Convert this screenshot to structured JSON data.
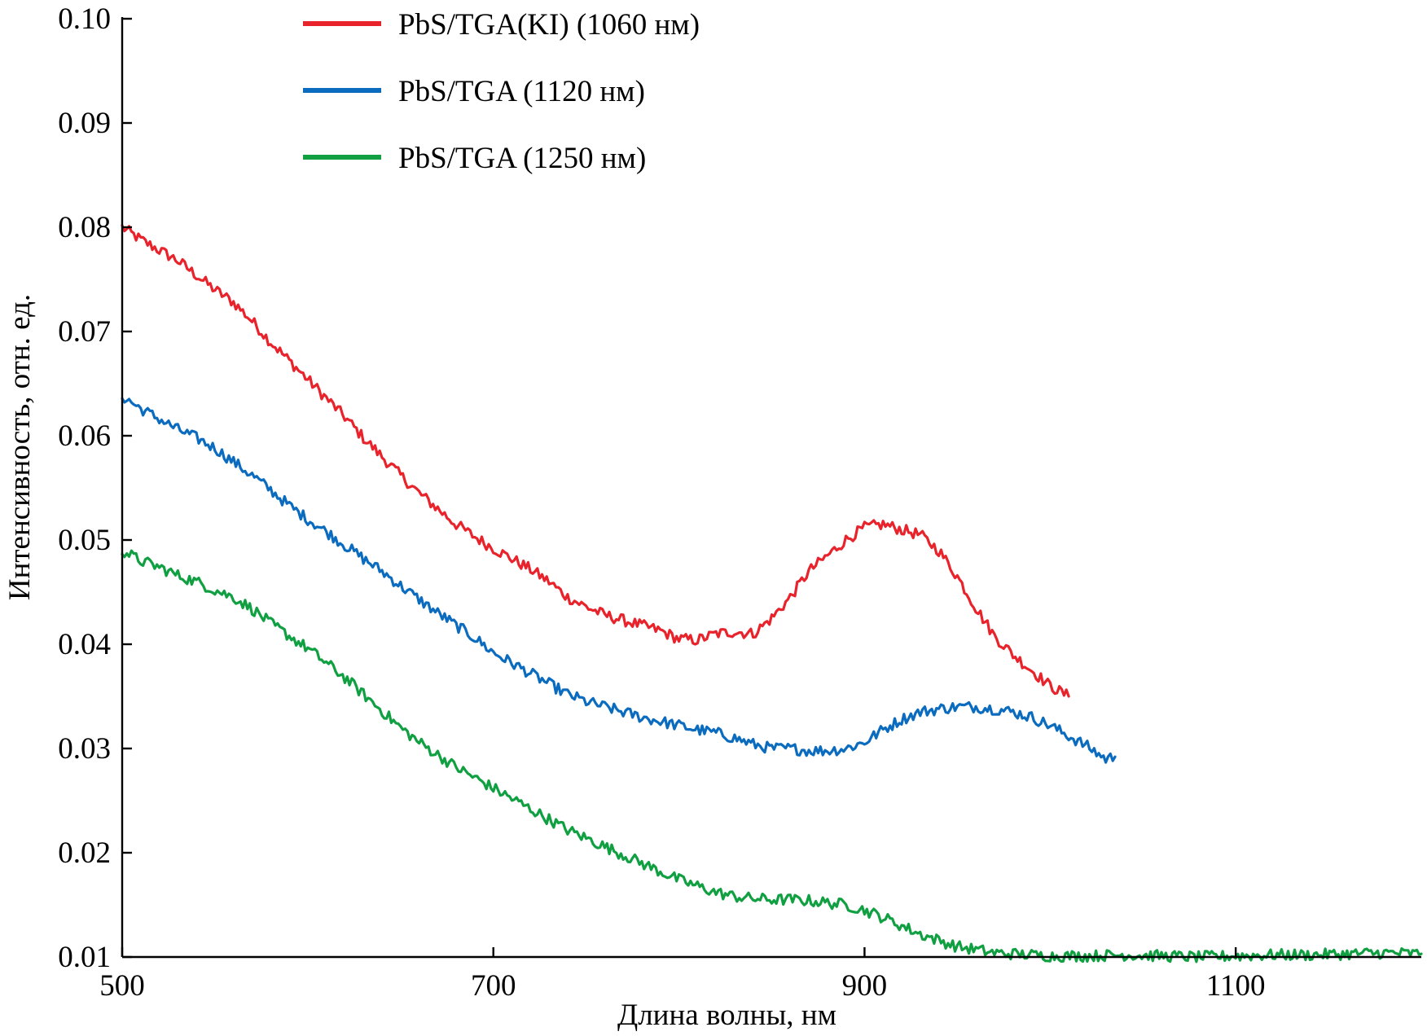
{
  "chart_data": {
    "type": "line",
    "title": "",
    "xlabel": "Длина волны, нм",
    "ylabel": "Интенсивность, отн. ед.",
    "xlim": [
      500,
      1200
    ],
    "ylim": [
      0.01,
      0.1
    ],
    "xticks": [
      500,
      700,
      900,
      1100
    ],
    "xtick_labels": [
      "500",
      "700",
      "900",
      "1100"
    ],
    "yticks": [
      0.01,
      0.02,
      0.03,
      0.04,
      0.05,
      0.06,
      0.07,
      0.08,
      0.09,
      0.1
    ],
    "ytick_labels": [
      "0.01",
      "0.02",
      "0.03",
      "0.04",
      "0.05",
      "0.06",
      "0.07",
      "0.08",
      "0.09",
      "0.10"
    ],
    "grid": false,
    "legend_position": "top-left",
    "series": [
      {
        "name": "PbS/TGA(KI) (1060 нм)",
        "color": "#e8232b",
        "x": [
          500,
          510,
          520,
          530,
          540,
          550,
          560,
          570,
          580,
          590,
          600,
          610,
          620,
          630,
          640,
          650,
          660,
          670,
          680,
          690,
          700,
          710,
          720,
          730,
          740,
          750,
          760,
          770,
          780,
          790,
          800,
          810,
          820,
          830,
          840,
          850,
          860,
          870,
          880,
          890,
          900,
          910,
          920,
          930,
          940,
          950,
          960,
          970,
          980,
          990,
          1000,
          1010
        ],
        "y": [
          0.08,
          0.0788,
          0.0778,
          0.0768,
          0.0754,
          0.074,
          0.0728,
          0.071,
          0.069,
          0.0672,
          0.0654,
          0.0636,
          0.0618,
          0.0598,
          0.058,
          0.0562,
          0.0545,
          0.053,
          0.0515,
          0.0503,
          0.0492,
          0.0482,
          0.0472,
          0.046,
          0.0445,
          0.0436,
          0.0428,
          0.0423,
          0.0418,
          0.0413,
          0.0405,
          0.0404,
          0.041,
          0.0412,
          0.041,
          0.0425,
          0.0445,
          0.047,
          0.0485,
          0.05,
          0.0512,
          0.0515,
          0.051,
          0.0505,
          0.049,
          0.0465,
          0.0435,
          0.0408,
          0.039,
          0.0375,
          0.036,
          0.035
        ]
      },
      {
        "name": "PbS/TGA (1120 нм)",
        "color": "#0b6cbf",
        "x": [
          500,
          510,
          520,
          530,
          540,
          550,
          560,
          570,
          580,
          590,
          600,
          610,
          620,
          630,
          640,
          650,
          660,
          670,
          680,
          690,
          700,
          710,
          720,
          730,
          740,
          750,
          760,
          770,
          780,
          790,
          800,
          810,
          820,
          830,
          840,
          850,
          860,
          870,
          880,
          890,
          900,
          910,
          920,
          930,
          940,
          950,
          960,
          970,
          980,
          990,
          1000,
          1010,
          1020,
          1030,
          1035
        ],
        "y": [
          0.0638,
          0.0626,
          0.0616,
          0.0606,
          0.0598,
          0.0588,
          0.0575,
          0.0562,
          0.0548,
          0.0533,
          0.052,
          0.0508,
          0.0495,
          0.0482,
          0.047,
          0.0456,
          0.0443,
          0.043,
          0.0418,
          0.0406,
          0.0392,
          0.0382,
          0.0372,
          0.0362,
          0.0352,
          0.0345,
          0.034,
          0.0335,
          0.033,
          0.0326,
          0.0322,
          0.0318,
          0.0315,
          0.031,
          0.0304,
          0.03,
          0.03,
          0.0298,
          0.0298,
          0.03,
          0.0306,
          0.0318,
          0.0328,
          0.0335,
          0.0338,
          0.034,
          0.034,
          0.0338,
          0.0335,
          0.033,
          0.0322,
          0.0312,
          0.0302,
          0.029,
          0.0292
        ]
      },
      {
        "name": "PbS/TGA (1250 нм)",
        "color": "#10a042",
        "x": [
          500,
          510,
          520,
          530,
          540,
          550,
          560,
          570,
          580,
          590,
          600,
          610,
          620,
          630,
          640,
          650,
          660,
          670,
          680,
          690,
          700,
          710,
          720,
          730,
          740,
          750,
          760,
          770,
          780,
          790,
          800,
          810,
          820,
          830,
          840,
          850,
          860,
          870,
          880,
          890,
          900,
          910,
          920,
          930,
          940,
          950,
          960,
          970,
          980,
          990,
          1000,
          1020,
          1040,
          1060,
          1080,
          1100,
          1120,
          1140,
          1160,
          1180,
          1200
        ],
        "y": [
          0.049,
          0.048,
          0.0474,
          0.0466,
          0.046,
          0.0452,
          0.0445,
          0.0434,
          0.042,
          0.0408,
          0.0396,
          0.0382,
          0.0368,
          0.0352,
          0.0336,
          0.032,
          0.0306,
          0.0294,
          0.0282,
          0.0272,
          0.0262,
          0.0252,
          0.0242,
          0.0232,
          0.0222,
          0.0214,
          0.0206,
          0.0198,
          0.019,
          0.0182,
          0.0174,
          0.0168,
          0.0162,
          0.0158,
          0.0156,
          0.0155,
          0.0155,
          0.0154,
          0.0152,
          0.015,
          0.0145,
          0.0138,
          0.013,
          0.0122,
          0.0116,
          0.011,
          0.0107,
          0.0104,
          0.0103,
          0.0102,
          0.0101,
          0.0101,
          0.0102,
          0.0101,
          0.01,
          0.0101,
          0.0102,
          0.0102,
          0.0103,
          0.0104,
          0.0103
        ]
      }
    ]
  }
}
